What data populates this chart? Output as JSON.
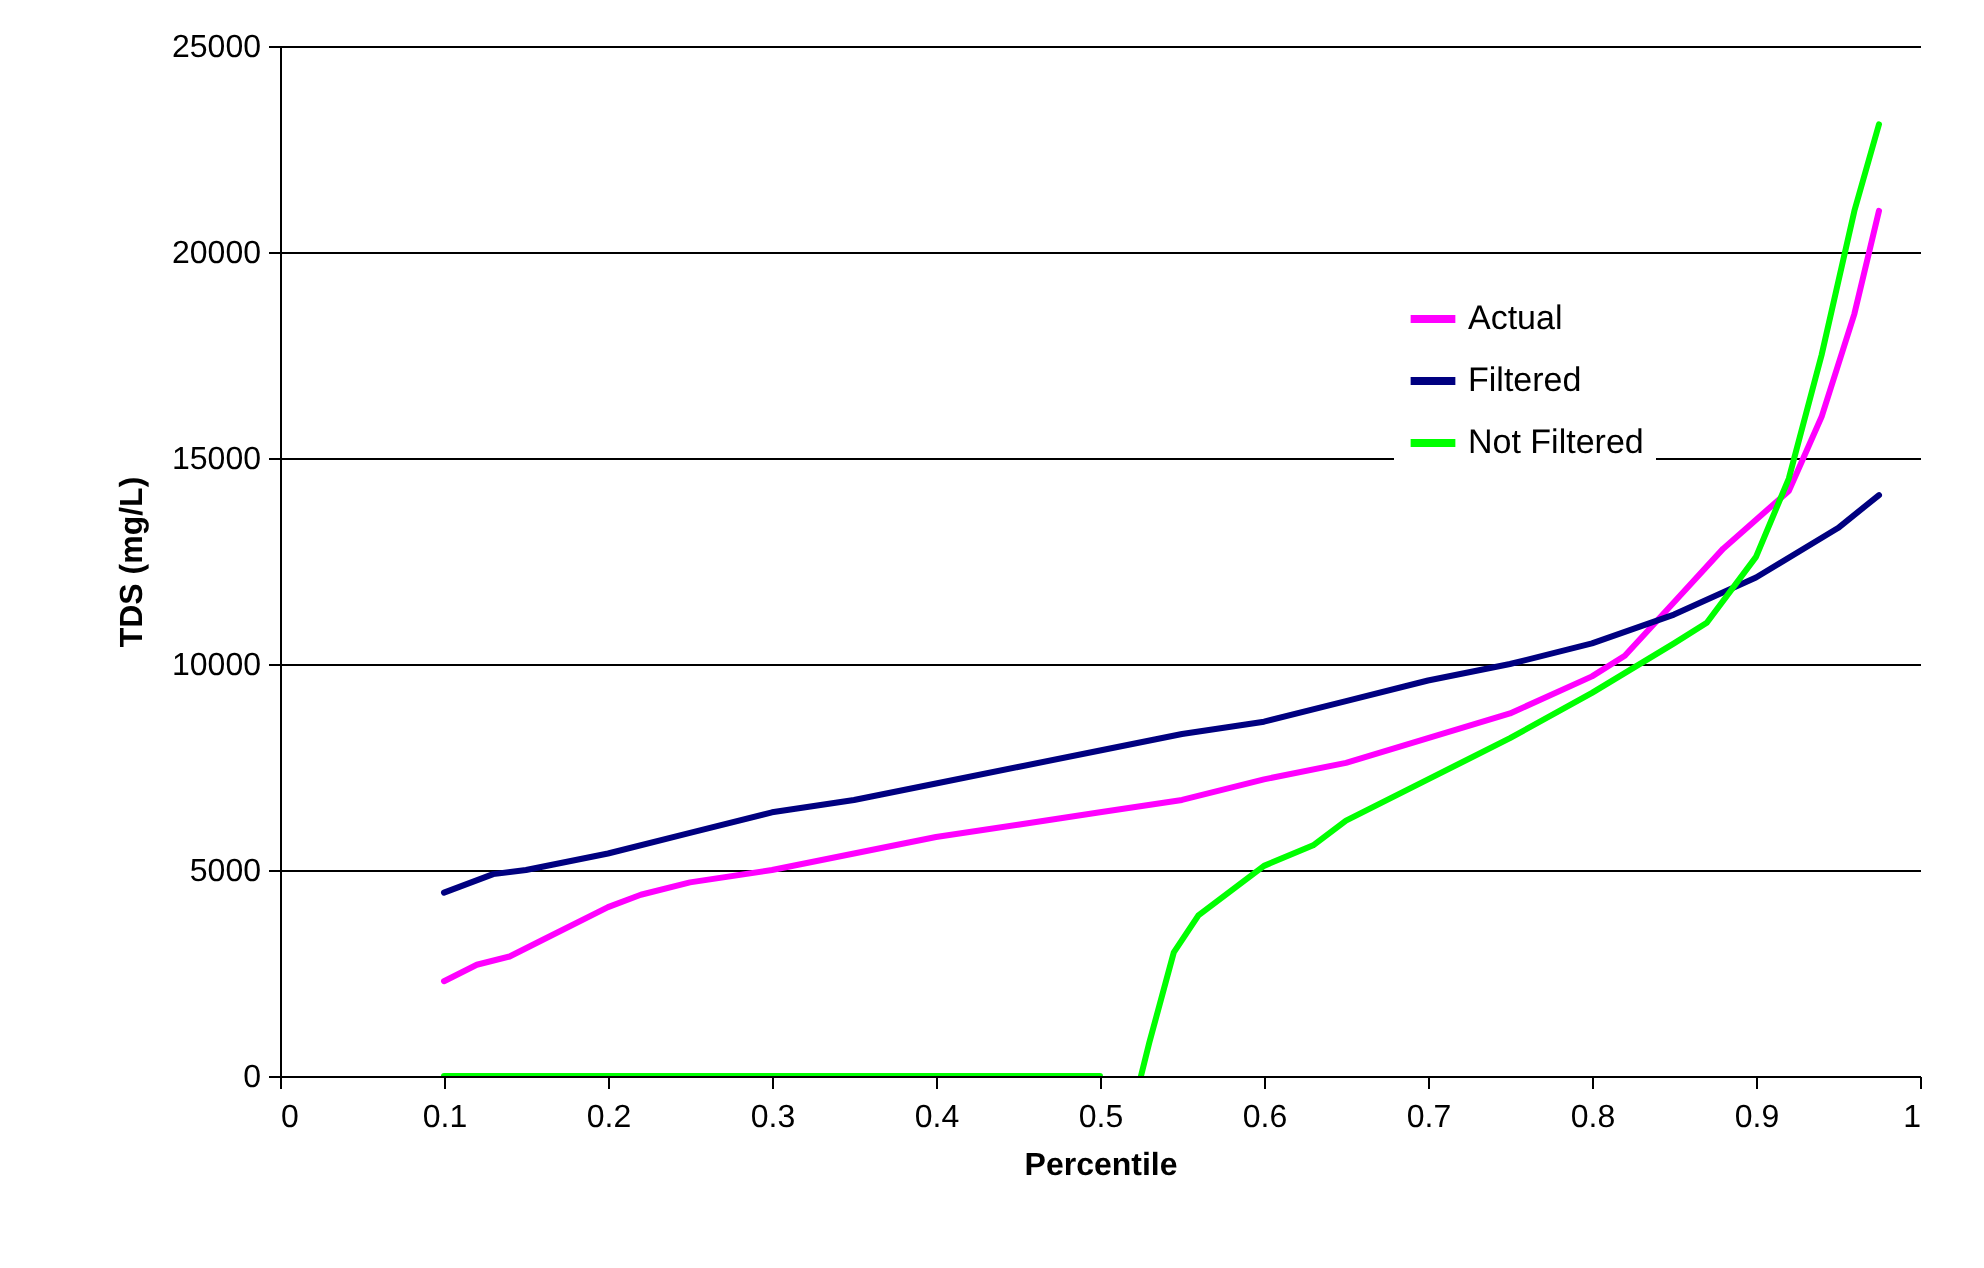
{
  "chart_data": {
    "type": "line",
    "xlabel": "Percentile",
    "ylabel": "TDS (mg/L)",
    "xlim": [
      0,
      1
    ],
    "ylim": [
      0,
      25000
    ],
    "xticks": [
      0,
      0.1,
      0.2,
      0.3,
      0.4,
      0.5,
      0.6,
      0.7,
      0.8,
      0.9,
      1
    ],
    "yticks": [
      0,
      5000,
      10000,
      15000,
      20000,
      25000
    ],
    "grid": "y",
    "legend": "top right",
    "marker": "none",
    "line_style": "solid",
    "series": [
      {
        "name": "Actual",
        "color": "#ff00ff",
        "x": [
          0.1,
          0.12,
          0.14,
          0.16,
          0.2,
          0.22,
          0.25,
          0.3,
          0.35,
          0.4,
          0.45,
          0.5,
          0.55,
          0.6,
          0.65,
          0.7,
          0.75,
          0.8,
          0.82,
          0.85,
          0.88,
          0.92,
          0.94,
          0.96,
          0.975
        ],
        "values": [
          2300,
          2700,
          2900,
          3300,
          4100,
          4400,
          4700,
          5000,
          5400,
          5800,
          6100,
          6400,
          6700,
          7200,
          7600,
          8200,
          8800,
          9700,
          10200,
          11500,
          12800,
          14200,
          16000,
          18500,
          21000
        ]
      },
      {
        "name": "Filtered",
        "color": "#000080",
        "x": [
          0.1,
          0.13,
          0.15,
          0.2,
          0.25,
          0.3,
          0.35,
          0.4,
          0.45,
          0.5,
          0.55,
          0.6,
          0.65,
          0.7,
          0.75,
          0.8,
          0.85,
          0.9,
          0.95,
          0.975
        ],
        "values": [
          4450,
          4900,
          5000,
          5400,
          5900,
          6400,
          6700,
          7100,
          7500,
          7900,
          8300,
          8600,
          9100,
          9600,
          10000,
          10500,
          11200,
          12100,
          13300,
          14100
        ]
      },
      {
        "name": "Not Filtered",
        "color": "#00ff00",
        "x": [
          0.1,
          0.3,
          0.5,
          0.51,
          0.525,
          0.53,
          0.545,
          0.56,
          0.58,
          0.6,
          0.63,
          0.65,
          0.7,
          0.75,
          0.8,
          0.85,
          0.87,
          0.9,
          0.92,
          0.94,
          0.96,
          0.975
        ],
        "values": [
          0,
          0,
          0,
          null,
          0,
          800,
          3000,
          3900,
          4500,
          5100,
          5600,
          6200,
          7200,
          8200,
          9300,
          10500,
          11000,
          12600,
          14500,
          17500,
          21000,
          23100
        ]
      }
    ]
  }
}
